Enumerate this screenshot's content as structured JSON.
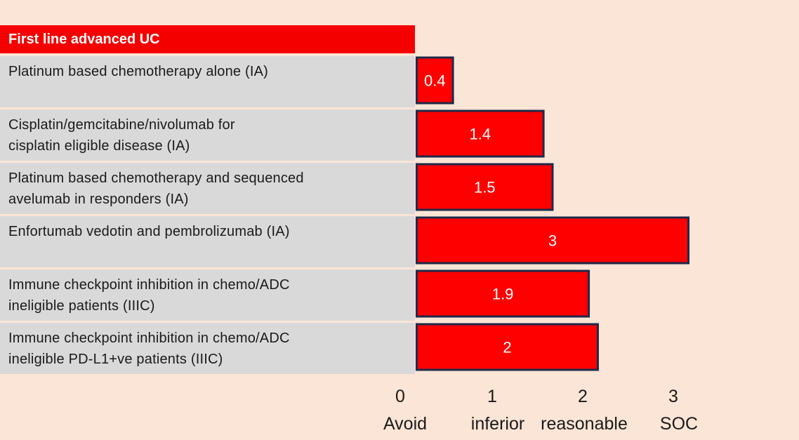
{
  "table": {
    "header": "First line advanced UC",
    "rows": [
      {
        "line1": "Platinum based chemotherapy  alone (IA)",
        "line2": ""
      },
      {
        "line1": "Cisplatin/gemcitabine/nivolumab for",
        "line2": "cisplatin eligible disease (IA)"
      },
      {
        "line1": "Platinum based chemotherapy  and sequenced",
        "line2": "avelumab in responders (IA)"
      },
      {
        "line1": "Enfortumab  vedotin and pembrolizumab  (IA)",
        "line2": ""
      },
      {
        "line1": "Immune  checkpoint  inhibition in chemo/ADC",
        "line2": " ineligible patients (IIIC)"
      },
      {
        "line1": "Immune  checkpoint  inhibition in chemo/ADC",
        "line2": "ineligible PD-L1+ve patients (IIIC)"
      }
    ]
  },
  "chart_data": {
    "type": "bar",
    "orientation": "horizontal",
    "categories": [
      "Platinum based chemotherapy alone (IA)",
      "Cisplatin/gemcitabine/nivolumab for cisplatin eligible disease (IA)",
      "Platinum based chemotherapy and sequenced avelumab in responders (IA)",
      "Enfortumab vedotin and pembrolizumab (IA)",
      "Immune checkpoint inhibition in chemo/ADC ineligible patients (IIIC)",
      "Immune checkpoint inhibition in chemo/ADC ineligible PD-L1+ve patients (IIIC)"
    ],
    "values": [
      0.4,
      1.4,
      1.5,
      3,
      1.9,
      2
    ],
    "value_labels": [
      "0.4",
      "1.4",
      "1.5",
      "3",
      "1.9",
      "2"
    ],
    "xlim": [
      0,
      3
    ],
    "x_ticks": [
      {
        "value": 0,
        "label": "0",
        "sublabel": "Avoid"
      },
      {
        "value": 1,
        "label": "1",
        "sublabel": "inferior"
      },
      {
        "value": 2,
        "label": "2",
        "sublabel": "reasonable"
      },
      {
        "value": 3,
        "label": "3",
        "sublabel": "SOC"
      }
    ],
    "grid": false,
    "bar_color": "#ff0000",
    "bar_border_color": "#1f2a4a"
  }
}
